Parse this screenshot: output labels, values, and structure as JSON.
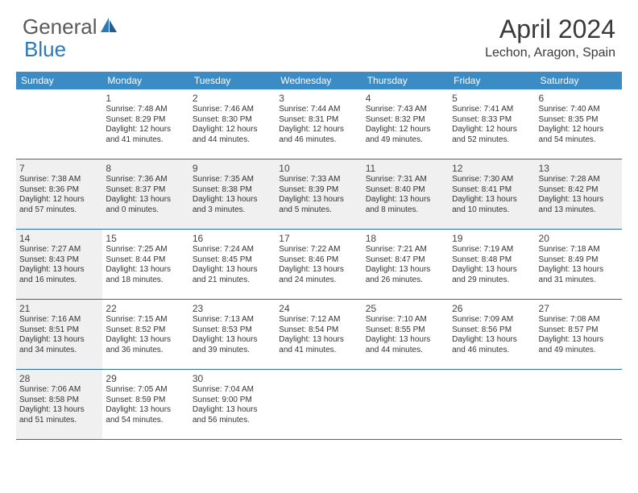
{
  "brand": {
    "part1": "General",
    "part2": "Blue"
  },
  "title": "April 2024",
  "location": "Lechon, Aragon, Spain",
  "colors": {
    "header_bg": "#3b8bc4",
    "header_text": "#ffffff",
    "week_border": "#2a6ca3",
    "shaded_bg": "#f0f0f0",
    "cell_bg": "#ffffff",
    "logo_blue": "#2a7ab8",
    "logo_gray": "#5a5a5a",
    "text": "#333333"
  },
  "day_names": [
    "Sunday",
    "Monday",
    "Tuesday",
    "Wednesday",
    "Thursday",
    "Friday",
    "Saturday"
  ],
  "weeks": [
    [
      {
        "n": "",
        "sr": "",
        "ss": "",
        "dl": "",
        "shaded": false
      },
      {
        "n": "1",
        "sr": "Sunrise: 7:48 AM",
        "ss": "Sunset: 8:29 PM",
        "dl": "Daylight: 12 hours and 41 minutes.",
        "shaded": false
      },
      {
        "n": "2",
        "sr": "Sunrise: 7:46 AM",
        "ss": "Sunset: 8:30 PM",
        "dl": "Daylight: 12 hours and 44 minutes.",
        "shaded": false
      },
      {
        "n": "3",
        "sr": "Sunrise: 7:44 AM",
        "ss": "Sunset: 8:31 PM",
        "dl": "Daylight: 12 hours and 46 minutes.",
        "shaded": false
      },
      {
        "n": "4",
        "sr": "Sunrise: 7:43 AM",
        "ss": "Sunset: 8:32 PM",
        "dl": "Daylight: 12 hours and 49 minutes.",
        "shaded": false
      },
      {
        "n": "5",
        "sr": "Sunrise: 7:41 AM",
        "ss": "Sunset: 8:33 PM",
        "dl": "Daylight: 12 hours and 52 minutes.",
        "shaded": false
      },
      {
        "n": "6",
        "sr": "Sunrise: 7:40 AM",
        "ss": "Sunset: 8:35 PM",
        "dl": "Daylight: 12 hours and 54 minutes.",
        "shaded": false
      }
    ],
    [
      {
        "n": "7",
        "sr": "Sunrise: 7:38 AM",
        "ss": "Sunset: 8:36 PM",
        "dl": "Daylight: 12 hours and 57 minutes.",
        "shaded": true
      },
      {
        "n": "8",
        "sr": "Sunrise: 7:36 AM",
        "ss": "Sunset: 8:37 PM",
        "dl": "Daylight: 13 hours and 0 minutes.",
        "shaded": true
      },
      {
        "n": "9",
        "sr": "Sunrise: 7:35 AM",
        "ss": "Sunset: 8:38 PM",
        "dl": "Daylight: 13 hours and 3 minutes.",
        "shaded": true
      },
      {
        "n": "10",
        "sr": "Sunrise: 7:33 AM",
        "ss": "Sunset: 8:39 PM",
        "dl": "Daylight: 13 hours and 5 minutes.",
        "shaded": true
      },
      {
        "n": "11",
        "sr": "Sunrise: 7:31 AM",
        "ss": "Sunset: 8:40 PM",
        "dl": "Daylight: 13 hours and 8 minutes.",
        "shaded": true
      },
      {
        "n": "12",
        "sr": "Sunrise: 7:30 AM",
        "ss": "Sunset: 8:41 PM",
        "dl": "Daylight: 13 hours and 10 minutes.",
        "shaded": true
      },
      {
        "n": "13",
        "sr": "Sunrise: 7:28 AM",
        "ss": "Sunset: 8:42 PM",
        "dl": "Daylight: 13 hours and 13 minutes.",
        "shaded": true
      }
    ],
    [
      {
        "n": "14",
        "sr": "Sunrise: 7:27 AM",
        "ss": "Sunset: 8:43 PM",
        "dl": "Daylight: 13 hours and 16 minutes.",
        "shaded": true
      },
      {
        "n": "15",
        "sr": "Sunrise: 7:25 AM",
        "ss": "Sunset: 8:44 PM",
        "dl": "Daylight: 13 hours and 18 minutes.",
        "shaded": false
      },
      {
        "n": "16",
        "sr": "Sunrise: 7:24 AM",
        "ss": "Sunset: 8:45 PM",
        "dl": "Daylight: 13 hours and 21 minutes.",
        "shaded": false
      },
      {
        "n": "17",
        "sr": "Sunrise: 7:22 AM",
        "ss": "Sunset: 8:46 PM",
        "dl": "Daylight: 13 hours and 24 minutes.",
        "shaded": false
      },
      {
        "n": "18",
        "sr": "Sunrise: 7:21 AM",
        "ss": "Sunset: 8:47 PM",
        "dl": "Daylight: 13 hours and 26 minutes.",
        "shaded": false
      },
      {
        "n": "19",
        "sr": "Sunrise: 7:19 AM",
        "ss": "Sunset: 8:48 PM",
        "dl": "Daylight: 13 hours and 29 minutes.",
        "shaded": false
      },
      {
        "n": "20",
        "sr": "Sunrise: 7:18 AM",
        "ss": "Sunset: 8:49 PM",
        "dl": "Daylight: 13 hours and 31 minutes.",
        "shaded": false
      }
    ],
    [
      {
        "n": "21",
        "sr": "Sunrise: 7:16 AM",
        "ss": "Sunset: 8:51 PM",
        "dl": "Daylight: 13 hours and 34 minutes.",
        "shaded": true
      },
      {
        "n": "22",
        "sr": "Sunrise: 7:15 AM",
        "ss": "Sunset: 8:52 PM",
        "dl": "Daylight: 13 hours and 36 minutes.",
        "shaded": false
      },
      {
        "n": "23",
        "sr": "Sunrise: 7:13 AM",
        "ss": "Sunset: 8:53 PM",
        "dl": "Daylight: 13 hours and 39 minutes.",
        "shaded": false
      },
      {
        "n": "24",
        "sr": "Sunrise: 7:12 AM",
        "ss": "Sunset: 8:54 PM",
        "dl": "Daylight: 13 hours and 41 minutes.",
        "shaded": false
      },
      {
        "n": "25",
        "sr": "Sunrise: 7:10 AM",
        "ss": "Sunset: 8:55 PM",
        "dl": "Daylight: 13 hours and 44 minutes.",
        "shaded": false
      },
      {
        "n": "26",
        "sr": "Sunrise: 7:09 AM",
        "ss": "Sunset: 8:56 PM",
        "dl": "Daylight: 13 hours and 46 minutes.",
        "shaded": false
      },
      {
        "n": "27",
        "sr": "Sunrise: 7:08 AM",
        "ss": "Sunset: 8:57 PM",
        "dl": "Daylight: 13 hours and 49 minutes.",
        "shaded": false
      }
    ],
    [
      {
        "n": "28",
        "sr": "Sunrise: 7:06 AM",
        "ss": "Sunset: 8:58 PM",
        "dl": "Daylight: 13 hours and 51 minutes.",
        "shaded": true
      },
      {
        "n": "29",
        "sr": "Sunrise: 7:05 AM",
        "ss": "Sunset: 8:59 PM",
        "dl": "Daylight: 13 hours and 54 minutes.",
        "shaded": false
      },
      {
        "n": "30",
        "sr": "Sunrise: 7:04 AM",
        "ss": "Sunset: 9:00 PM",
        "dl": "Daylight: 13 hours and 56 minutes.",
        "shaded": false
      },
      {
        "n": "",
        "sr": "",
        "ss": "",
        "dl": "",
        "shaded": false
      },
      {
        "n": "",
        "sr": "",
        "ss": "",
        "dl": "",
        "shaded": false
      },
      {
        "n": "",
        "sr": "",
        "ss": "",
        "dl": "",
        "shaded": false
      },
      {
        "n": "",
        "sr": "",
        "ss": "",
        "dl": "",
        "shaded": false
      }
    ]
  ]
}
